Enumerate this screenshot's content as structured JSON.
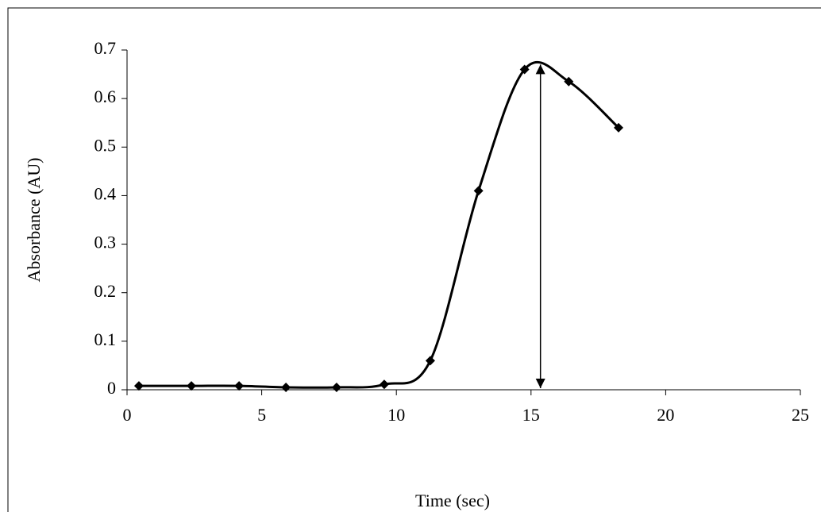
{
  "chart_data": {
    "type": "scatter",
    "x_label": "Time (sec)",
    "y_label": "Absorbance (AU)",
    "x": [
      0.44,
      2.39,
      4.16,
      5.9,
      7.78,
      9.55,
      11.26,
      13.05,
      14.76,
      16.4,
      18.25
    ],
    "series": [
      {
        "color": "#000000",
        "values": [
          0.008,
          0.008,
          0.008,
          0.005,
          0.005,
          0.011,
          0.06,
          0.41,
          0.66,
          0.635,
          0.54
        ]
      }
    ],
    "xlim": [
      0,
      25
    ],
    "xticks": [
      0,
      5,
      10,
      15,
      20,
      25
    ],
    "ylim": [
      0,
      0.7
    ],
    "yticks": [
      0,
      0.1,
      0.2,
      0.3,
      0.4,
      0.5,
      0.6,
      0.7
    ],
    "grid": false,
    "annotations": [
      {
        "type": "double-arrow",
        "x": 15.35,
        "y_start": 0,
        "y_end": 0.67
      }
    ]
  }
}
